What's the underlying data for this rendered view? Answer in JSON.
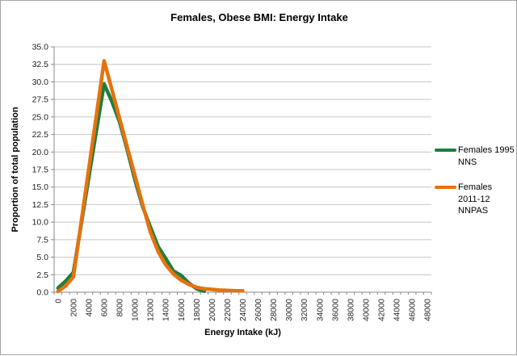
{
  "chart_data": {
    "type": "line",
    "title": "Females, Obese BMI: Energy Intake",
    "xlabel": "Energy Intake (kJ)",
    "ylabel": "Proportion of total population",
    "xlim": [
      0,
      48000
    ],
    "ylim": [
      0,
      35
    ],
    "y_tick_step": 2.5,
    "x_tick_step": 2000,
    "grid": true,
    "legend_position": "right",
    "x_tick_labels": [
      "0",
      "2000",
      "4000",
      "6000",
      "8000",
      "10000",
      "12000",
      "14000",
      "16000",
      "18000",
      "20000",
      "22000",
      "24000",
      "26000",
      "28000",
      "30000",
      "32000",
      "34000",
      "36000",
      "38000",
      "40000",
      "42000",
      "44000",
      "46000",
      "48000"
    ],
    "y_tick_labels": [
      "0.0",
      "2.5",
      "5.0",
      "7.5",
      "10.0",
      "12.5",
      "15.0",
      "17.5",
      "20.0",
      "22.5",
      "25.0",
      "27.5",
      "30.0",
      "32.5",
      "35.0"
    ],
    "series": [
      {
        "name": "Females 1995 NNS",
        "color": "#1e7e3e",
        "x_start": 0,
        "x_step": 1000,
        "values": [
          0.6,
          1.6,
          2.8,
          9.6,
          16.4,
          23.1,
          29.7,
          27.2,
          24.3,
          20.3,
          16.0,
          12.2,
          9.3,
          6.5,
          4.8,
          3.0,
          2.4,
          1.3,
          0.5,
          0.15
        ]
      },
      {
        "name": "Females 2011-12 NNPAS",
        "color": "#e6720e",
        "x_start": 0,
        "x_step": 1000,
        "values": [
          0.1,
          0.9,
          2.2,
          9.9,
          17.6,
          25.3,
          33.0,
          28.9,
          24.8,
          20.7,
          16.6,
          12.5,
          8.6,
          5.8,
          3.9,
          2.6,
          1.7,
          1.1,
          0.7,
          0.5,
          0.4,
          0.3,
          0.25,
          0.2,
          0.2
        ]
      }
    ],
    "colors": {
      "gridline": "#c6c6c6",
      "axis": "#898989",
      "tick_text": "#1f1f1f"
    }
  }
}
